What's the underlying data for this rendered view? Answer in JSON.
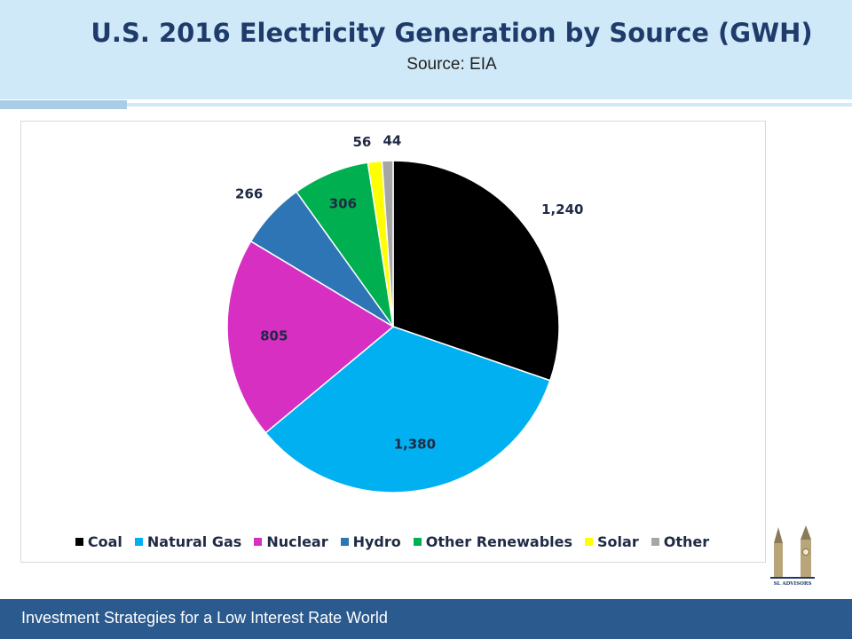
{
  "header": {
    "title": "U.S. 2016 Electricity Generation by Source (GWH)",
    "subtitle": "Source: EIA"
  },
  "chart_data": {
    "type": "pie",
    "title": "U.S. 2016 Electricity Generation by Source (GWH)",
    "subtitle": "Source: EIA",
    "categories": [
      "Coal",
      "Natural Gas",
      "Nuclear",
      "Hydro",
      "Other Renewables",
      "Solar",
      "Other"
    ],
    "values": [
      1240,
      1380,
      805,
      266,
      306,
      56,
      44
    ],
    "labels": [
      "1,240",
      "1,380",
      "805",
      "266",
      "306",
      "56",
      "44"
    ],
    "colors": [
      "#000000",
      "#00b0f0",
      "#d62fc2",
      "#2e75b6",
      "#00b050",
      "#ffff00",
      "#a6a6a6"
    ],
    "legend_position": "bottom"
  },
  "logo": {
    "text": "SL ADVISORS"
  },
  "footer": {
    "text": "Investment Strategies for a Low Interest Rate World"
  }
}
